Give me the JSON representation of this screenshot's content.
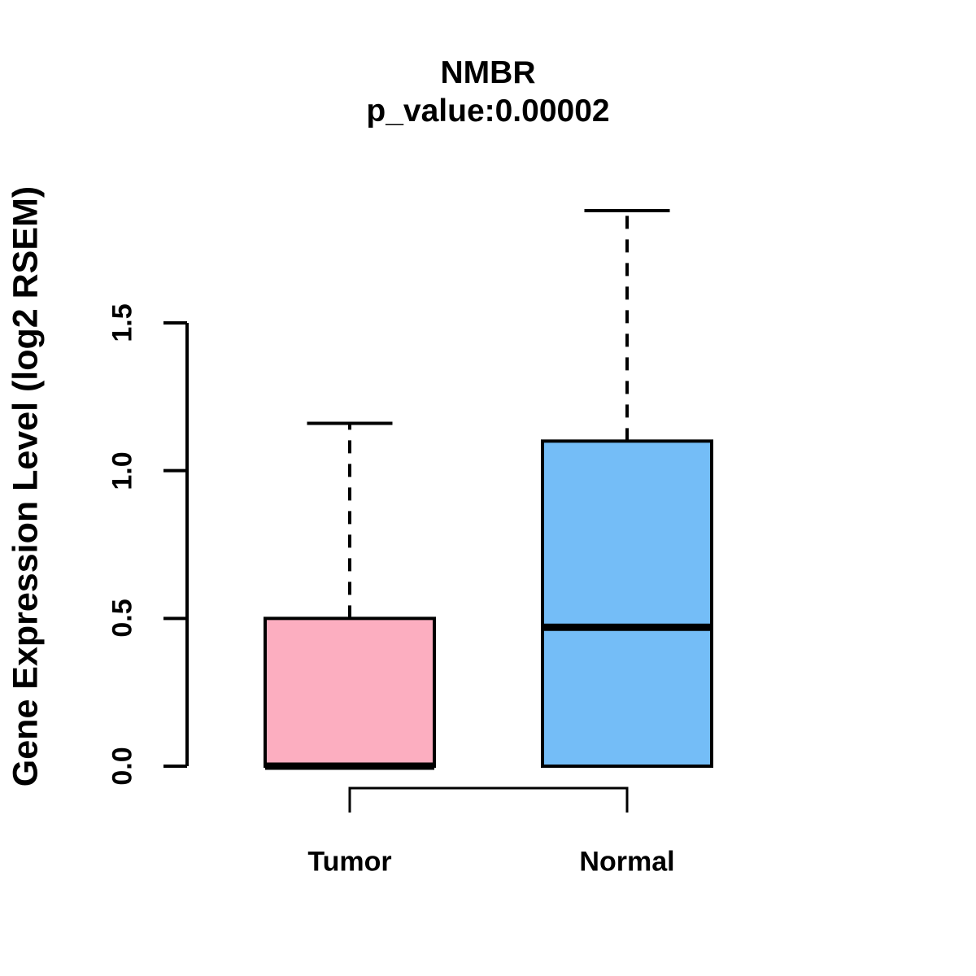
{
  "chart_data": {
    "type": "boxplot",
    "title": "NMBR",
    "subtitle": "p_value:0.00002",
    "ylabel": "Gene Expression Level (log2 RSEM)",
    "xlabel": "",
    "categories": [
      "Tumor",
      "Normal"
    ],
    "yticks": [
      0,
      0.5,
      1.0,
      1.5
    ],
    "ytick_labels": [
      "0.0",
      "0.5",
      "1.0",
      "1.5"
    ],
    "ylim": [
      0,
      1.9
    ],
    "grid": false,
    "legend": "none",
    "comparison_bracket": true,
    "line_color": "#000000",
    "background_color": "#FFFFFF",
    "groups": [
      {
        "label": "Tumor",
        "color": "#FCAEC0",
        "min": 0.0,
        "q1": 0.0,
        "median": 0.0,
        "q3": 0.5,
        "max": 1.16
      },
      {
        "label": "Normal",
        "color": "#74BDF7",
        "min": 0.0,
        "q1": 0.0,
        "median": 0.47,
        "q3": 1.1,
        "max": 1.88
      }
    ]
  }
}
